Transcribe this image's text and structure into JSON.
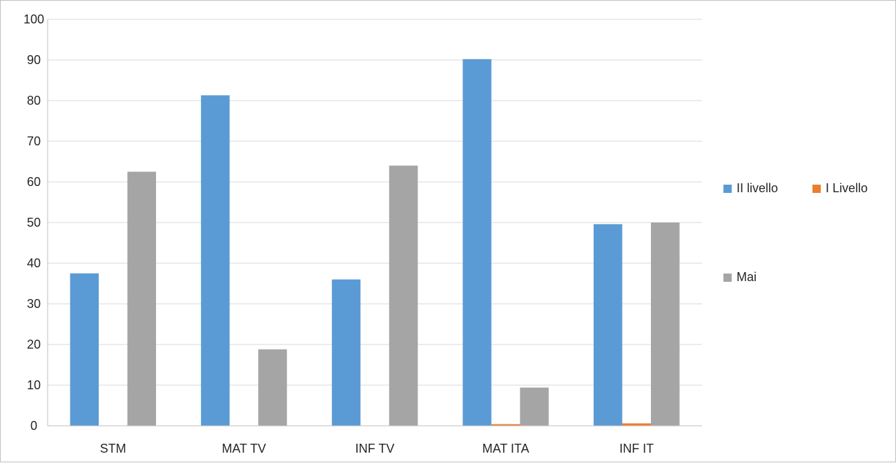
{
  "chart_data": {
    "type": "bar",
    "title": "",
    "xlabel": "",
    "ylabel": "",
    "categories": [
      "STM",
      "MAT TV",
      "INF TV",
      "MAT ITA",
      "INF IT"
    ],
    "ylim": [
      0,
      100
    ],
    "yticks": [
      0,
      10,
      20,
      30,
      40,
      50,
      60,
      70,
      80,
      90,
      100
    ],
    "grid": true,
    "legend_position": "right",
    "series": [
      {
        "name": "II livello",
        "color": "#5b9bd5",
        "values": [
          37.5,
          81.3,
          36.0,
          90.2,
          49.6
        ]
      },
      {
        "name": "I Livello",
        "color": "#ed7d31",
        "values": [
          0,
          0,
          0,
          0.4,
          0.6
        ]
      },
      {
        "name": "Mai",
        "color": "#a5a5a5",
        "values": [
          62.5,
          18.8,
          64.0,
          9.4,
          50.0
        ]
      }
    ]
  }
}
